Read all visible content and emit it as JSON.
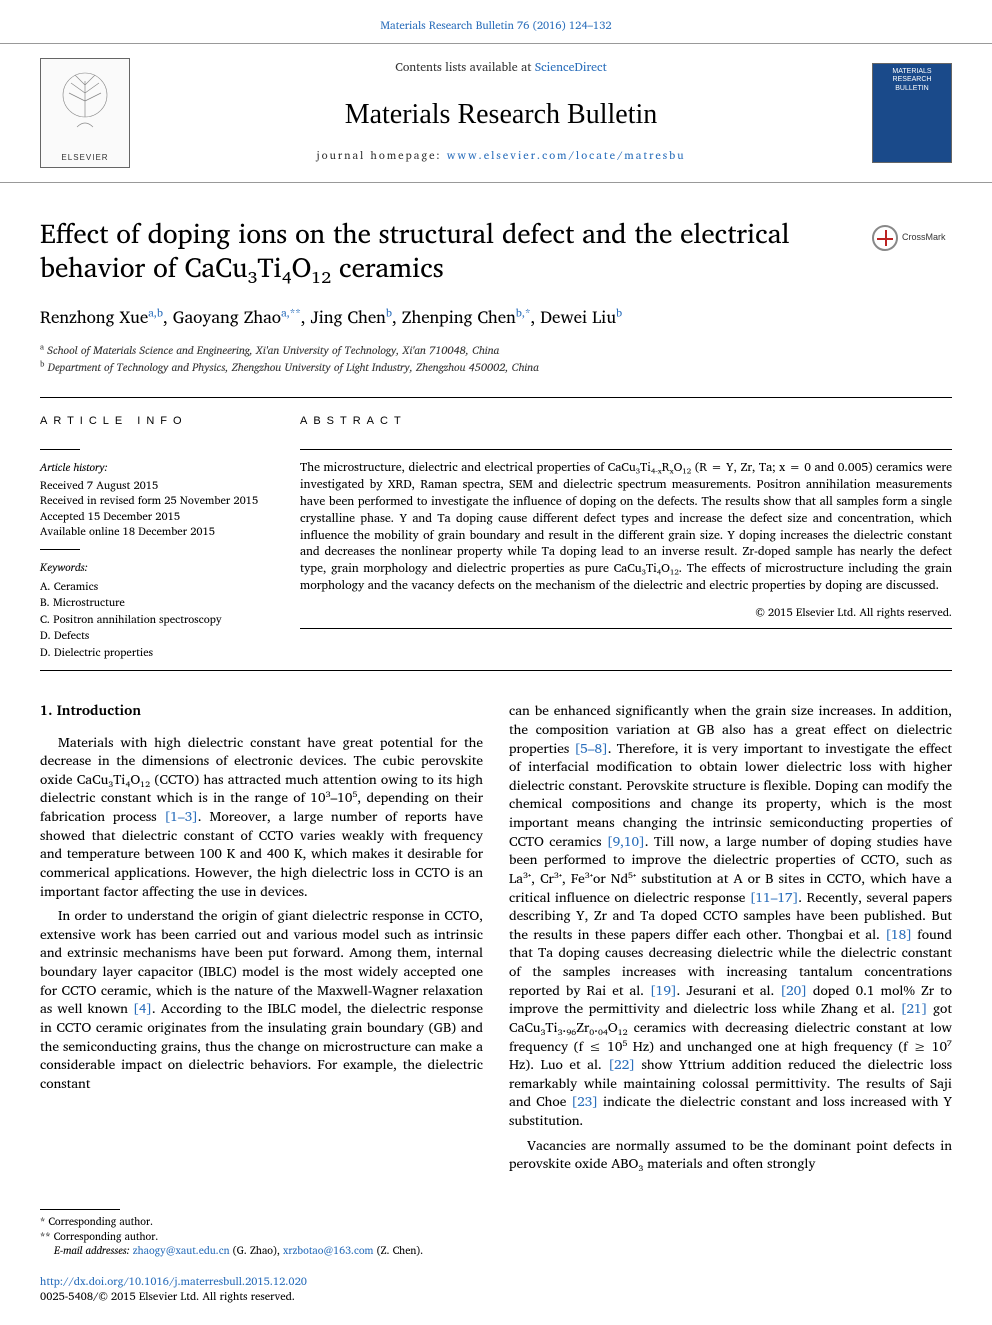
{
  "header": {
    "citation": "Materials Research Bulletin 76 (2016) 124–132",
    "contents_text": "Contents lists available at ",
    "contents_link": "ScienceDirect",
    "journal_name": "Materials Research Bulletin",
    "homepage_label": "journal homepage: ",
    "homepage_url": "www.elsevier.com/locate/matresbu",
    "elsevier_label": "ELSEVIER",
    "cover_text": "MATERIALS RESEARCH BULLETIN"
  },
  "title": "Effect of doping ions on the structural defect and the electrical behavior of CaCu₃Ti₄O₁₂ ceramics",
  "crossmark": "CrossMark",
  "authors_html": "Renzhong Xue<sup>a,b</sup>, Gaoyang Zhao<sup>a,**</sup>, Jing Chen<sup>b</sup>, Zhenping Chen<sup>b,*</sup>, Dewei Liu<sup>b</sup>",
  "affiliations": {
    "a": "School of Materials Science and Engineering, Xi'an University of Technology, Xi'an 710048, China",
    "b": "Department of Technology and Physics, Zhengzhou University of Light Industry, Zhengzhou 450002, China"
  },
  "article_info": {
    "heading": "ARTICLE INFO",
    "history_title": "Article history:",
    "history": [
      "Received 7 August 2015",
      "Received in revised form 25 November 2015",
      "Accepted 15 December 2015",
      "Available online 18 December 2015"
    ],
    "keywords_title": "Keywords:",
    "keywords": [
      "A. Ceramics",
      "B. Microstructure",
      "C. Positron annihilation spectroscopy",
      "D. Defects",
      "D. Dielectric properties"
    ]
  },
  "abstract": {
    "heading": "ABSTRACT",
    "text": "The microstructure, dielectric and electrical properties of CaCu₃Ti₄₋ₓRₓO₁₂ (R = Y, Zr, Ta; x = 0 and 0.005) ceramics were investigated by XRD, Raman spectra, SEM and dielectric spectrum measurements. Positron annihilation measurements have been performed to investigate the influence of doping on the defects. The results show that all samples form a single crystalline phase. Y and Ta doping cause different defect types and increase the defect size and concentration, which influence the mobility of grain boundary and result in the different grain size. Y doping increases the dielectric constant and decreases the nonlinear property while Ta doping lead to an inverse result. Zr-doped sample has nearly the defect type, grain morphology and dielectric properties as pure CaCu₃Ti₄O₁₂. The effects of microstructure including the grain morphology and the vacancy defects on the mechanism of the dielectric and electric properties by doping are discussed.",
    "copyright": "© 2015 Elsevier Ltd. All rights reserved."
  },
  "section1": {
    "heading": "1. Introduction",
    "p1": "Materials with high dielectric constant have great potential for the decrease in the dimensions of electronic devices. The cubic perovskite oxide CaCu₃Ti₄O₁₂ (CCTO) has attracted much attention owing to its high dielectric constant which is in the range of 10³–10⁵, depending on their fabrication process [1–3]. Moreover, a large number of reports have showed that dielectric constant of CCTO varies weakly with frequency and temperature between 100 K and 400 K, which makes it desirable for commerical applications. However, the high dielectric loss in CCTO is an important factor affecting the use in devices.",
    "p2": "In order to understand the origin of giant dielectric response in CCTO, extensive work has been carried out and various model such as intrinsic and extrinsic mechanisms have been put forward. Among them, internal boundary layer capacitor (IBLC) model is the most widely accepted one for CCTO ceramic, which is the nature of the Maxwell-Wagner relaxation as well known [4]. According to the IBLC model, the dielectric response in CCTO ceramic originates from the insulating grain boundary (GB) and the semiconducting grains, thus the change on microstructure can make a considerable impact on dielectric behaviors. For example, the dielectric constant",
    "p3": "can be enhanced significantly when the grain size increases. In addition, the composition variation at GB also has a great effect on dielectric properties [5–8]. Therefore, it is very important to investigate the effect of interfacial modification to obtain lower dielectric loss with higher dielectric constant. Perovskite structure is flexible. Doping can modify the chemical compositions and change its property, which is the most important means changing the intrinsic semiconducting properties of CCTO ceramics [9,10]. Till now, a large number of doping studies have been performed to improve the dielectric properties of CCTO, such as La³⁺, Cr³⁺, Fe³⁺or Nd⁵⁺ substitution at A or B sites in CCTO, which have a critical influence on dielectric response [11–17]. Recently, several papers describing Y, Zr and Ta doped CCTO samples have been published. But the results in these papers differ each other. Thongbai et al. [18] found that Ta doping causes decreasing dielectric while the dielectric constant of the samples increases with increasing tantalum concentrations reported by Rai et al. [19]. Jesurani et al. [20] doped 0.1 mol% Zr to improve the permittivity and dielectric loss while Zhang et al. [21] got CaCu₃Ti₃.₉₆Zr₀.₀₄O₁₂ ceramics with decreasing dielectric constant at low frequency (f ≤ 10⁵ Hz) and unchanged one at high frequency (f ≥ 10⁷ Hz). Luo et al. [22] show Yttrium addition reduced the dielectric loss remarkably while maintaining colossal permittivity. The results of Saji and Choe [23] indicate the dielectric constant and loss increased with Y substitution.",
    "p4": "Vacancies are normally assumed to be the dominant point defects in perovskite oxide ABO₃ materials and often strongly"
  },
  "footnotes": {
    "corr1": "* Corresponding author.",
    "corr2": "** Corresponding author.",
    "email_label": "E-mail addresses: ",
    "email1": "zhaogy@xaut.edu.cn",
    "email1_tail": " (G. Zhao), ",
    "email2": "xrzbotao@163.com",
    "email2_tail": " (Z. Chen)."
  },
  "doi": {
    "url": "http://dx.doi.org/10.1016/j.materresbull.2015.12.020",
    "issn_line": "0025-5408/© 2015 Elsevier Ltd. All rights reserved."
  },
  "refs": {
    "r1": "[1–3]",
    "r4": "[4]",
    "r5": "[5–8]",
    "r9": "[9,10]",
    "r11": "[11–17]",
    "r18": "[18]",
    "r19": "[19]",
    "r20": "[20]",
    "r21": "[21]",
    "r22": "[22]",
    "r23": "[23]"
  },
  "colors": {
    "link": "#2a6ebb",
    "text": "#000000",
    "cover_bg": "#1a4a8a"
  }
}
